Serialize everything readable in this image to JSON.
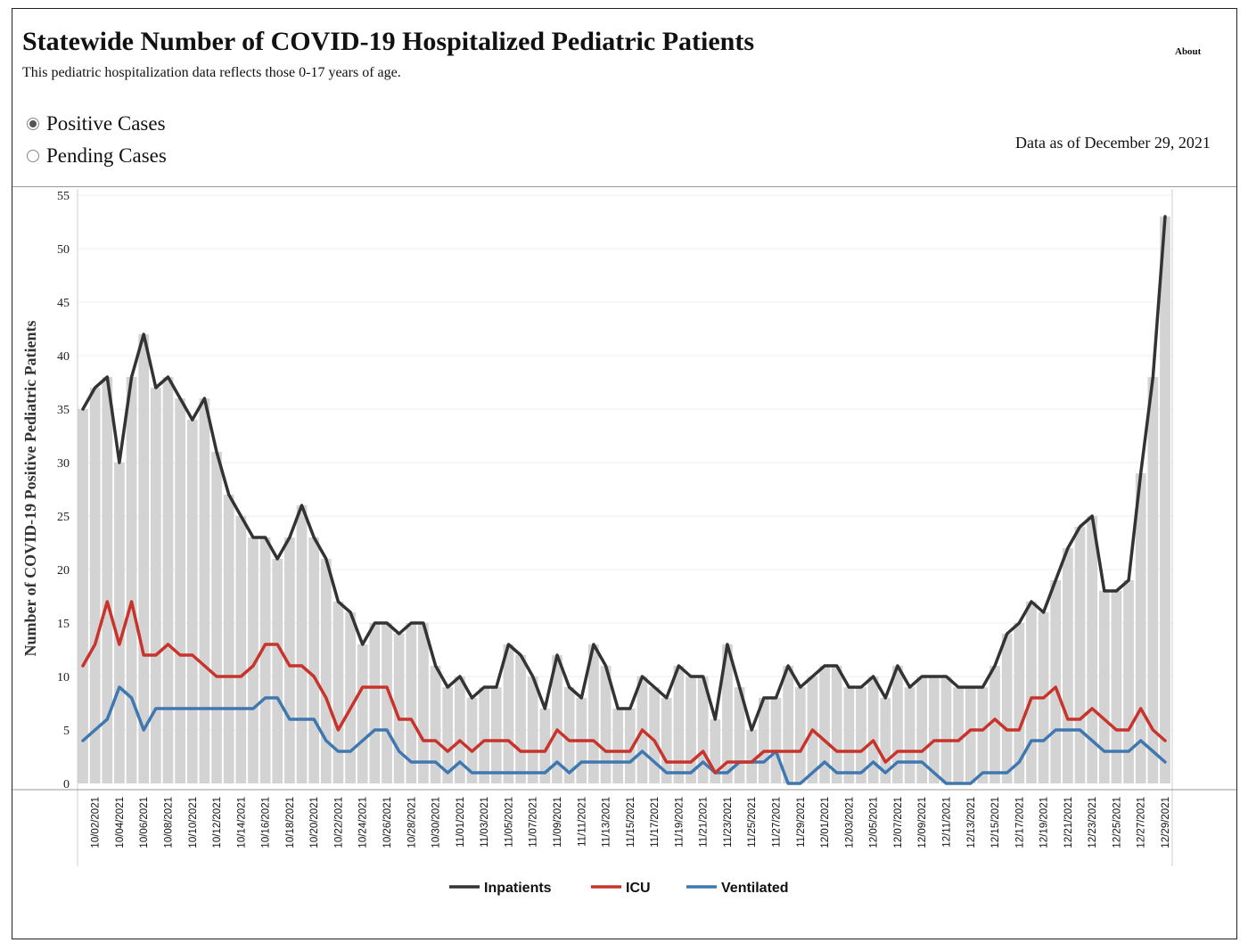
{
  "header": {
    "title": "Statewide Number of COVID-19 Hospitalized Pediatric Patients",
    "subtitle": "This pediatric hospitalization data reflects those 0-17 years of age.",
    "about_label": "About",
    "as_of": "Data as of December 29, 2021"
  },
  "filters": {
    "options": [
      {
        "label": "Positive Cases",
        "selected": true
      },
      {
        "label": "Pending Cases",
        "selected": false
      }
    ]
  },
  "colors": {
    "bars": "#d3d3d3",
    "inpatients": "#333333",
    "icu": "#c8332b",
    "ventilated": "#3f78b0"
  },
  "chart_data": {
    "type": "bar+line",
    "ylabel": "Number of COVID-19 Positive Pediatric Patients",
    "ylim": [
      0,
      55
    ],
    "yticks": [
      0,
      5,
      10,
      15,
      20,
      25,
      30,
      35,
      40,
      45,
      50,
      55
    ],
    "start_date": "2021-10-01",
    "end_date": "2021-12-29",
    "tick_labels": [
      "10/02/2021",
      "10/04/2021",
      "10/06/2021",
      "10/08/2021",
      "10/10/2021",
      "10/12/2021",
      "10/14/2021",
      "10/16/2021",
      "10/18/2021",
      "10/20/2021",
      "10/22/2021",
      "10/24/2021",
      "10/26/2021",
      "10/28/2021",
      "10/30/2021",
      "11/01/2021",
      "11/03/2021",
      "11/05/2021",
      "11/07/2021",
      "11/09/2021",
      "11/11/2021",
      "11/13/2021",
      "11/15/2021",
      "11/17/2021",
      "11/19/2021",
      "11/21/2021",
      "11/23/2021",
      "11/25/2021",
      "11/27/2021",
      "11/29/2021",
      "12/01/2021",
      "12/03/2021",
      "12/05/2021",
      "12/07/2021",
      "12/09/2021",
      "12/11/2021",
      "12/13/2021",
      "12/15/2021",
      "12/17/2021",
      "12/19/2021",
      "12/21/2021",
      "12/23/2021",
      "12/25/2021",
      "12/27/2021",
      "12/29/2021"
    ],
    "bar_series": "Inpatients",
    "series": [
      {
        "name": "Inpatients",
        "values": [
          35,
          37,
          38,
          30,
          38,
          42,
          37,
          38,
          36,
          34,
          36,
          31,
          27,
          25,
          23,
          23,
          21,
          23,
          26,
          23,
          21,
          17,
          16,
          13,
          15,
          15,
          14,
          15,
          15,
          11,
          9,
          10,
          8,
          9,
          9,
          13,
          12,
          10,
          7,
          12,
          9,
          8,
          13,
          11,
          7,
          7,
          10,
          9,
          8,
          11,
          10,
          10,
          6,
          13,
          9,
          5,
          8,
          8,
          11,
          9,
          10,
          11,
          11,
          9,
          9,
          10,
          8,
          11,
          9,
          10,
          10,
          10,
          9,
          9,
          9,
          11,
          14,
          15,
          17,
          16,
          19,
          22,
          24,
          25,
          18,
          18,
          19,
          29,
          38,
          53
        ]
      },
      {
        "name": "ICU",
        "values": [
          11,
          13,
          17,
          13,
          17,
          12,
          12,
          13,
          12,
          12,
          11,
          10,
          10,
          10,
          11,
          13,
          13,
          11,
          11,
          10,
          8,
          5,
          7,
          9,
          9,
          9,
          6,
          6,
          4,
          4,
          3,
          4,
          3,
          4,
          4,
          4,
          3,
          3,
          3,
          5,
          4,
          4,
          4,
          3,
          3,
          3,
          5,
          4,
          2,
          2,
          2,
          3,
          1,
          2,
          2,
          2,
          3,
          3,
          3,
          3,
          5,
          4,
          3,
          3,
          3,
          4,
          2,
          3,
          3,
          3,
          4,
          4,
          4,
          5,
          5,
          6,
          5,
          5,
          8,
          8,
          9,
          6,
          6,
          7,
          6,
          5,
          5,
          7,
          5,
          4
        ]
      },
      {
        "name": "Ventilated",
        "values": [
          4,
          5,
          6,
          9,
          8,
          5,
          7,
          7,
          7,
          7,
          7,
          7,
          7,
          7,
          7,
          8,
          8,
          6,
          6,
          6,
          4,
          3,
          3,
          4,
          5,
          5,
          3,
          2,
          2,
          2,
          1,
          2,
          1,
          1,
          1,
          1,
          1,
          1,
          1,
          2,
          1,
          2,
          2,
          2,
          2,
          2,
          3,
          2,
          1,
          1,
          1,
          2,
          1,
          1,
          2,
          2,
          2,
          3,
          0,
          0,
          1,
          2,
          1,
          1,
          1,
          2,
          1,
          2,
          2,
          2,
          1,
          0,
          0,
          0,
          1,
          1,
          1,
          2,
          4,
          4,
          5,
          5,
          5,
          4,
          3,
          3,
          3,
          4,
          3,
          2
        ]
      }
    ],
    "legend": [
      "Inpatients",
      "ICU",
      "Ventilated"
    ],
    "legend_position": "bottom-center",
    "grid": true
  }
}
